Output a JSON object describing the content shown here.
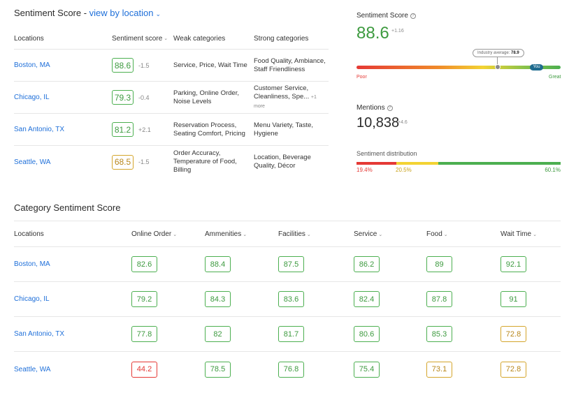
{
  "header": {
    "title": "Sentiment Score -",
    "view_link": "view by location"
  },
  "location_table": {
    "columns": [
      "Locations",
      "Sentiment score",
      "Weak categories",
      "Strong categories"
    ],
    "rows": [
      {
        "location": "Boston, MA",
        "score": "88.6",
        "delta": "-1.5",
        "score_status": "good",
        "weak": "Service, Price, Wait Time",
        "strong": "Food Quality, Ambiance, Staff Friendliness",
        "more": ""
      },
      {
        "location": "Chicago, IL",
        "score": "79.3",
        "delta": "-0.4",
        "score_status": "good",
        "weak": "Parking, Online Order, Noise Levels",
        "strong": "Customer Service, Cleanliness, Spe...",
        "more": "+1 more"
      },
      {
        "location": "San Antonio, TX",
        "score": "81.2",
        "delta": "+2.1",
        "score_status": "good",
        "weak": "Reservation Process, Seating Comfort, Pricing",
        "strong": "Menu Variety, Taste, Hygiene",
        "more": ""
      },
      {
        "location": "Seattle, WA",
        "score": "68.5",
        "delta": "-1.5",
        "score_status": "warn",
        "weak": "Order Accuracy, Temperature of Food, Billing",
        "strong": "Location, Beverage Quality, Décor",
        "more": ""
      }
    ]
  },
  "summary": {
    "score_label": "Sentiment Score",
    "score_value": "88.6",
    "score_delta": "+1.16",
    "industry_label": "Industry average:",
    "industry_value": "78.9",
    "you_label": "You",
    "poor_label": "Poor",
    "great_label": "Great",
    "mentions_label": "Mentions",
    "mentions_value": "10,838",
    "mentions_delta": "+4.6",
    "distribution_label": "Sentiment distribution",
    "distribution": {
      "negative": "19.4%",
      "neutral": "20.5%",
      "positive": "60.1%"
    }
  },
  "category_table": {
    "title": "Category Sentiment Score",
    "columns": [
      "Locations",
      "Online Order",
      "Ammenities",
      "Facilities",
      "Service",
      "Food",
      "Wait Time"
    ],
    "rows": [
      {
        "location": "Boston, MA",
        "values": [
          "82.6",
          "88.4",
          "87.5",
          "86.2",
          "89",
          "92.1"
        ],
        "status": [
          "good",
          "good",
          "good",
          "good",
          "good",
          "good"
        ]
      },
      {
        "location": "Chicago, IL",
        "values": [
          "79.2",
          "84.3",
          "83.6",
          "82.4",
          "87.8",
          "91"
        ],
        "status": [
          "good",
          "good",
          "good",
          "good",
          "good",
          "good"
        ]
      },
      {
        "location": "San Antonio, TX",
        "values": [
          "77.8",
          "82",
          "81.7",
          "80.6",
          "85.3",
          "72.8"
        ],
        "status": [
          "good",
          "good",
          "good",
          "good",
          "good",
          "warn"
        ]
      },
      {
        "location": "Seattle, WA",
        "values": [
          "44.2",
          "78.5",
          "76.8",
          "75.4",
          "73.1",
          "72.8"
        ],
        "status": [
          "bad",
          "good",
          "good",
          "good",
          "warn",
          "warn"
        ]
      }
    ]
  },
  "colors": {
    "link": "#1e6fd9",
    "good": "#4caf50",
    "warn": "#d4a52b",
    "bad": "#e53935",
    "you_pill": "#1f6b8f"
  },
  "icons": {
    "info": "info-icon",
    "chevron": "chevron-down-icon"
  }
}
